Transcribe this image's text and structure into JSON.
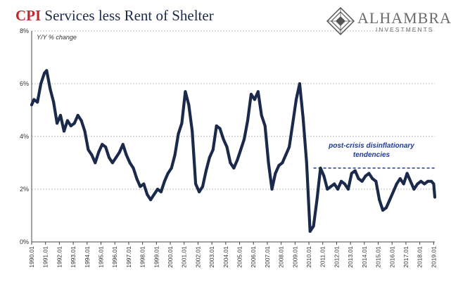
{
  "title": {
    "acronym": "CPI",
    "rest": " Services less Rent of Shelter"
  },
  "logo": {
    "name": "ALHAMBRA",
    "sub": "INVESTMENTS"
  },
  "colors": {
    "series": "#1b2a4a",
    "accent": "#c0282d",
    "annotation": "#1f3a93",
    "grid": "#bdbdbd"
  },
  "chart_data": {
    "type": "line",
    "title": "CPI Services less Rent of Shelter",
    "ylabel": "Y/Y % change",
    "xlabel": "",
    "ylim": [
      0,
      8
    ],
    "xlim": [
      "1990-01",
      "2019-02"
    ],
    "grid": true,
    "yticks": [
      "0%",
      "2%",
      "4%",
      "6%",
      "8%"
    ],
    "xticks": [
      "1990.01",
      "1991.01",
      "1992.01",
      "1993.01",
      "1994.01",
      "1995.01",
      "1996.01",
      "1997.01",
      "1998.01",
      "1999.01",
      "2000.01",
      "2001.01",
      "2002.01",
      "2003.01",
      "2004.01",
      "2005.01",
      "2006.01",
      "2007.01",
      "2008.01",
      "2009.01",
      "2010.01",
      "2011.01",
      "2012.01",
      "2013.01",
      "2014.01",
      "2015.01",
      "2016.01",
      "2017.01",
      "2018.01",
      "2019.01"
    ],
    "series": [
      {
        "x": [
          "1990-01",
          "1990-03",
          "1990-06",
          "1990-09",
          "1990-12",
          "1991-02",
          "1991-05",
          "1991-08",
          "1991-11",
          "1992-02",
          "1992-05",
          "1992-08",
          "1992-11",
          "1993-02",
          "1993-05",
          "1993-08",
          "1993-11",
          "1994-02",
          "1994-05",
          "1994-08",
          "1994-11",
          "1995-02",
          "1995-05",
          "1995-08",
          "1995-11",
          "1996-02",
          "1996-05",
          "1996-08",
          "1996-11",
          "1997-02",
          "1997-05",
          "1997-08",
          "1997-11",
          "1998-02",
          "1998-05",
          "1998-08",
          "1998-11",
          "1999-02",
          "1999-05",
          "1999-08",
          "1999-11",
          "2000-02",
          "2000-05",
          "2000-08",
          "2000-11",
          "2001-02",
          "2001-05",
          "2001-08",
          "2001-11",
          "2002-02",
          "2002-05",
          "2002-08",
          "2002-11",
          "2003-02",
          "2003-05",
          "2003-08",
          "2003-11",
          "2004-02",
          "2004-05",
          "2004-08",
          "2004-11",
          "2005-02",
          "2005-05",
          "2005-08",
          "2005-11",
          "2006-02",
          "2006-05",
          "2006-08",
          "2006-11",
          "2007-02",
          "2007-05",
          "2007-08",
          "2007-11",
          "2008-02",
          "2008-05",
          "2008-08",
          "2008-11",
          "2009-02",
          "2009-05",
          "2009-08",
          "2009-11",
          "2010-02",
          "2010-05",
          "2010-08",
          "2010-11",
          "2011-02",
          "2011-05",
          "2011-08",
          "2011-11",
          "2012-02",
          "2012-05",
          "2012-08",
          "2012-11",
          "2013-02",
          "2013-05",
          "2013-08",
          "2013-11",
          "2014-02",
          "2014-05",
          "2014-08",
          "2014-11",
          "2015-02",
          "2015-05",
          "2015-08",
          "2015-11",
          "2016-02",
          "2016-05",
          "2016-08",
          "2016-11",
          "2017-02",
          "2017-05",
          "2017-08",
          "2017-11",
          "2018-02",
          "2018-05",
          "2018-08",
          "2018-11",
          "2019-01",
          "2019-02"
        ],
        "values": [
          5.2,
          5.4,
          5.3,
          6.0,
          6.4,
          6.5,
          5.8,
          5.3,
          4.5,
          4.8,
          4.2,
          4.6,
          4.4,
          4.5,
          4.8,
          4.6,
          4.2,
          3.5,
          3.3,
          3.0,
          3.4,
          3.7,
          3.6,
          3.2,
          3.0,
          3.2,
          3.4,
          3.7,
          3.3,
          3.0,
          2.8,
          2.4,
          2.1,
          2.2,
          1.8,
          1.6,
          1.8,
          2.0,
          1.9,
          2.3,
          2.6,
          2.8,
          3.3,
          4.1,
          4.5,
          5.7,
          5.2,
          4.2,
          2.2,
          1.9,
          2.1,
          2.7,
          3.2,
          3.5,
          4.4,
          4.3,
          3.9,
          3.6,
          3.0,
          2.8,
          3.1,
          3.5,
          3.9,
          4.6,
          5.6,
          5.4,
          5.7,
          4.8,
          4.4,
          3.0,
          2.0,
          2.6,
          2.9,
          3.0,
          3.3,
          3.6,
          4.5,
          5.4,
          6.0,
          4.7,
          3.0,
          0.4,
          0.6,
          1.6,
          2.8,
          2.5,
          2.0,
          2.1,
          2.2,
          2.0,
          2.3,
          2.2,
          2.0,
          2.6,
          2.7,
          2.4,
          2.3,
          2.5,
          2.6,
          2.4,
          2.3,
          1.6,
          1.2,
          1.3,
          1.6,
          1.9,
          2.2,
          2.4,
          2.2,
          2.6,
          2.3,
          2.0,
          2.2,
          2.3,
          2.2,
          2.3,
          2.3,
          2.2,
          1.7
        ]
      }
    ],
    "reference_line": {
      "y": 2.8,
      "from": "2010-05",
      "to": "2019-02",
      "style": "dashed"
    },
    "annotation": {
      "lines": [
        "post-crisis disinflationary",
        "tendencies"
      ]
    }
  }
}
